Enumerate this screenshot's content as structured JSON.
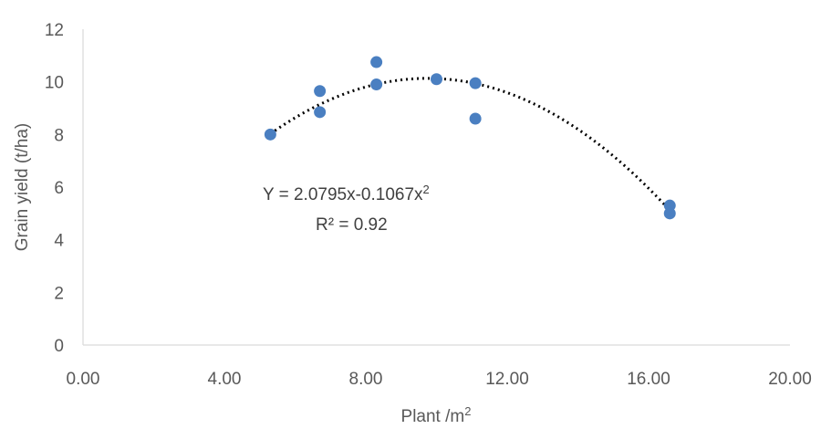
{
  "chart_data": {
    "type": "scatter",
    "xlabel": "Plant /m",
    "xlabel_sup": "2",
    "ylabel": "Grain yield (t/ha)",
    "xlim": [
      0,
      20
    ],
    "ylim": [
      0,
      12
    ],
    "x_ticks": [
      "0.00",
      "4.00",
      "8.00",
      "12.00",
      "16.00",
      "20.00"
    ],
    "x_tick_values": [
      0,
      4,
      8,
      12,
      16,
      20
    ],
    "y_ticks": [
      "0",
      "2",
      "4",
      "6",
      "8",
      "10",
      "12"
    ],
    "y_tick_values": [
      0,
      2,
      4,
      6,
      8,
      10,
      12
    ],
    "grid": false,
    "point_color": "#4a7fc1",
    "trendline": {
      "type": "polynomial",
      "order": 2,
      "coefficients": {
        "a": -0.1067,
        "b": 2.0795
      },
      "x_range": [
        5.3,
        16.6
      ],
      "style": "dotted",
      "color": "#000000"
    },
    "equation_text": "Y = 2.0795x-0.1067x",
    "equation_sup": "2",
    "r2_text": "R² = 0.92",
    "points": [
      {
        "x": 5.3,
        "y": 8.0
      },
      {
        "x": 6.7,
        "y": 9.65
      },
      {
        "x": 6.7,
        "y": 8.85
      },
      {
        "x": 8.3,
        "y": 10.75
      },
      {
        "x": 8.3,
        "y": 9.9
      },
      {
        "x": 10.0,
        "y": 10.1
      },
      {
        "x": 11.1,
        "y": 9.95
      },
      {
        "x": 11.1,
        "y": 8.6
      },
      {
        "x": 16.6,
        "y": 5.3
      },
      {
        "x": 16.6,
        "y": 5.0
      }
    ]
  }
}
